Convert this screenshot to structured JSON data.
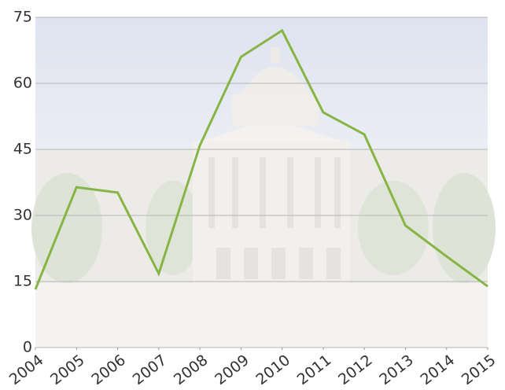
{
  "chart_data": {
    "type": "line",
    "x": [
      2004,
      2005,
      2006,
      2007,
      2008,
      2009,
      2010,
      2011,
      2012,
      2013,
      2014,
      2015
    ],
    "series": [
      {
        "color": "#86b545",
        "values": [
          13.2,
          36.4,
          35.2,
          16.8,
          45.9,
          66,
          72,
          53.4,
          48.4,
          27.7,
          20.7,
          13.9
        ]
      }
    ],
    "xlim": [
      2004,
      2015
    ],
    "xticks": [
      2004,
      2005,
      2006,
      2007,
      2008,
      2009,
      2010,
      2011,
      2012,
      2013,
      2014,
      2015
    ],
    "ylim": [
      0,
      75
    ],
    "yticks": [
      0,
      15,
      30,
      45,
      60,
      75
    ],
    "grid": true
  }
}
